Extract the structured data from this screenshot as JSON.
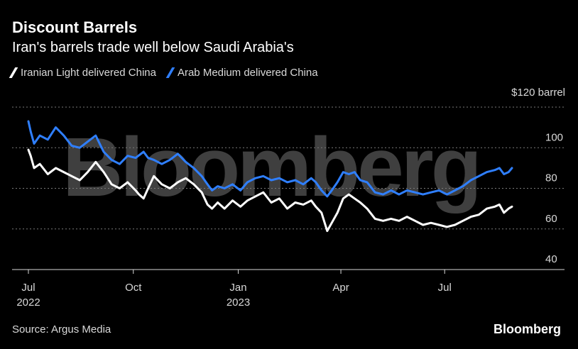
{
  "header": {
    "title": "Discount Barrels",
    "subtitle": "Iran's barrels trade well below Saudi Arabia's"
  },
  "legend": [
    {
      "label": "Iranian Light delivered China",
      "color": "#ffffff"
    },
    {
      "label": "Arab Medium delivered China",
      "color": "#2f7fff"
    }
  ],
  "watermark": "Bloomberg",
  "footer": {
    "source": "Source: Argus Media",
    "brand": "Bloomberg"
  },
  "chart_data": {
    "type": "line",
    "title": "Discount Barrels",
    "subtitle": "Iran's barrels trade well below Saudi Arabia's",
    "ylabel": "$120 barrel",
    "ylim": [
      40,
      120
    ],
    "yticks": [
      40,
      60,
      80,
      100,
      120
    ],
    "ytick_labels": [
      "40",
      "60",
      "80",
      "100",
      "$120 barrel"
    ],
    "xlim": [
      "2022-07-01",
      "2023-09-03"
    ],
    "xticks": [
      {
        "date": "2022-07-01",
        "label": "Jul",
        "sublabel": "2022"
      },
      {
        "date": "2022-10-01",
        "label": "Oct",
        "sublabel": ""
      },
      {
        "date": "2023-01-01",
        "label": "Jan",
        "sublabel": "2023"
      },
      {
        "date": "2023-04-01",
        "label": "Apr",
        "sublabel": ""
      },
      {
        "date": "2023-07-01",
        "label": "Jul",
        "sublabel": ""
      }
    ],
    "grid": true,
    "legend_position": "top-left",
    "series": [
      {
        "name": "Iranian Light delivered China",
        "color": "#ffffff",
        "points": [
          [
            "2022-07-01",
            99
          ],
          [
            "2022-07-03",
            96
          ],
          [
            "2022-07-06",
            90
          ],
          [
            "2022-07-11",
            92
          ],
          [
            "2022-07-18",
            87
          ],
          [
            "2022-07-25",
            90
          ],
          [
            "2022-08-01",
            88
          ],
          [
            "2022-08-08",
            86
          ],
          [
            "2022-08-15",
            84
          ],
          [
            "2022-08-22",
            88
          ],
          [
            "2022-08-29",
            93
          ],
          [
            "2022-09-05",
            88
          ],
          [
            "2022-09-12",
            82
          ],
          [
            "2022-09-19",
            80
          ],
          [
            "2022-09-26",
            83
          ],
          [
            "2022-10-03",
            79
          ],
          [
            "2022-10-06",
            77
          ],
          [
            "2022-10-10",
            75
          ],
          [
            "2022-10-14",
            80
          ],
          [
            "2022-10-19",
            86
          ],
          [
            "2022-10-26",
            82
          ],
          [
            "2022-11-02",
            80
          ],
          [
            "2022-11-09",
            83
          ],
          [
            "2022-11-16",
            85
          ],
          [
            "2022-11-23",
            82
          ],
          [
            "2022-11-30",
            78
          ],
          [
            "2022-12-05",
            72
          ],
          [
            "2022-12-09",
            70
          ],
          [
            "2022-12-14",
            73
          ],
          [
            "2022-12-20",
            70
          ],
          [
            "2022-12-27",
            74
          ],
          [
            "2023-01-03",
            71
          ],
          [
            "2023-01-09",
            74
          ],
          [
            "2023-01-16",
            76
          ],
          [
            "2023-01-23",
            78
          ],
          [
            "2023-01-30",
            73
          ],
          [
            "2023-02-06",
            75
          ],
          [
            "2023-02-13",
            70
          ],
          [
            "2023-02-20",
            73
          ],
          [
            "2023-02-27",
            72
          ],
          [
            "2023-03-06",
            74
          ],
          [
            "2023-03-10",
            71
          ],
          [
            "2023-03-15",
            68
          ],
          [
            "2023-03-20",
            59
          ],
          [
            "2023-03-24",
            63
          ],
          [
            "2023-03-29",
            68
          ],
          [
            "2023-04-03",
            75
          ],
          [
            "2023-04-08",
            77
          ],
          [
            "2023-04-13",
            75
          ],
          [
            "2023-04-18",
            73
          ],
          [
            "2023-04-24",
            70
          ],
          [
            "2023-05-01",
            65
          ],
          [
            "2023-05-08",
            64
          ],
          [
            "2023-05-15",
            65
          ],
          [
            "2023-05-22",
            64
          ],
          [
            "2023-05-29",
            66
          ],
          [
            "2023-06-05",
            64
          ],
          [
            "2023-06-12",
            62
          ],
          [
            "2023-06-19",
            63
          ],
          [
            "2023-06-26",
            62
          ],
          [
            "2023-07-03",
            61
          ],
          [
            "2023-07-10",
            62
          ],
          [
            "2023-07-17",
            64
          ],
          [
            "2023-07-24",
            66
          ],
          [
            "2023-07-31",
            67
          ],
          [
            "2023-08-07",
            70
          ],
          [
            "2023-08-14",
            71
          ],
          [
            "2023-08-18",
            72
          ],
          [
            "2023-08-22",
            68
          ],
          [
            "2023-08-26",
            70
          ],
          [
            "2023-08-29",
            71
          ]
        ]
      },
      {
        "name": "Arab Medium delivered China",
        "color": "#2f7fff",
        "points": [
          [
            "2022-07-01",
            113
          ],
          [
            "2022-07-03",
            108
          ],
          [
            "2022-07-06",
            102
          ],
          [
            "2022-07-11",
            106
          ],
          [
            "2022-07-18",
            104
          ],
          [
            "2022-07-25",
            110
          ],
          [
            "2022-08-01",
            106
          ],
          [
            "2022-08-08",
            101
          ],
          [
            "2022-08-15",
            100
          ],
          [
            "2022-08-22",
            103
          ],
          [
            "2022-08-29",
            106
          ],
          [
            "2022-09-05",
            98
          ],
          [
            "2022-09-12",
            94
          ],
          [
            "2022-09-19",
            92
          ],
          [
            "2022-09-26",
            96
          ],
          [
            "2022-10-03",
            95
          ],
          [
            "2022-10-10",
            98
          ],
          [
            "2022-10-14",
            95
          ],
          [
            "2022-10-19",
            94
          ],
          [
            "2022-10-26",
            92
          ],
          [
            "2022-11-02",
            94
          ],
          [
            "2022-11-09",
            97
          ],
          [
            "2022-11-16",
            93
          ],
          [
            "2022-11-23",
            90
          ],
          [
            "2022-11-30",
            86
          ],
          [
            "2022-12-05",
            82
          ],
          [
            "2022-12-09",
            79
          ],
          [
            "2022-12-14",
            81
          ],
          [
            "2022-12-20",
            80
          ],
          [
            "2022-12-27",
            82
          ],
          [
            "2023-01-03",
            79
          ],
          [
            "2023-01-09",
            83
          ],
          [
            "2023-01-16",
            85
          ],
          [
            "2023-01-23",
            86
          ],
          [
            "2023-01-30",
            84
          ],
          [
            "2023-02-06",
            85
          ],
          [
            "2023-02-13",
            83
          ],
          [
            "2023-02-20",
            84
          ],
          [
            "2023-02-27",
            82
          ],
          [
            "2023-03-06",
            85
          ],
          [
            "2023-03-10",
            83
          ],
          [
            "2023-03-15",
            79
          ],
          [
            "2023-03-20",
            76
          ],
          [
            "2023-03-24",
            79
          ],
          [
            "2023-03-29",
            83
          ],
          [
            "2023-04-03",
            88
          ],
          [
            "2023-04-08",
            87
          ],
          [
            "2023-04-13",
            88
          ],
          [
            "2023-04-18",
            84
          ],
          [
            "2023-04-24",
            83
          ],
          [
            "2023-05-01",
            78
          ],
          [
            "2023-05-08",
            77
          ],
          [
            "2023-05-15",
            79
          ],
          [
            "2023-05-22",
            77
          ],
          [
            "2023-05-29",
            79
          ],
          [
            "2023-06-05",
            78
          ],
          [
            "2023-06-12",
            77
          ],
          [
            "2023-06-19",
            78
          ],
          [
            "2023-06-26",
            79
          ],
          [
            "2023-07-03",
            77
          ],
          [
            "2023-07-10",
            79
          ],
          [
            "2023-07-17",
            81
          ],
          [
            "2023-07-24",
            84
          ],
          [
            "2023-07-31",
            86
          ],
          [
            "2023-08-07",
            88
          ],
          [
            "2023-08-14",
            89
          ],
          [
            "2023-08-18",
            90
          ],
          [
            "2023-08-22",
            87
          ],
          [
            "2023-08-26",
            88
          ],
          [
            "2023-08-29",
            90
          ]
        ]
      }
    ]
  }
}
